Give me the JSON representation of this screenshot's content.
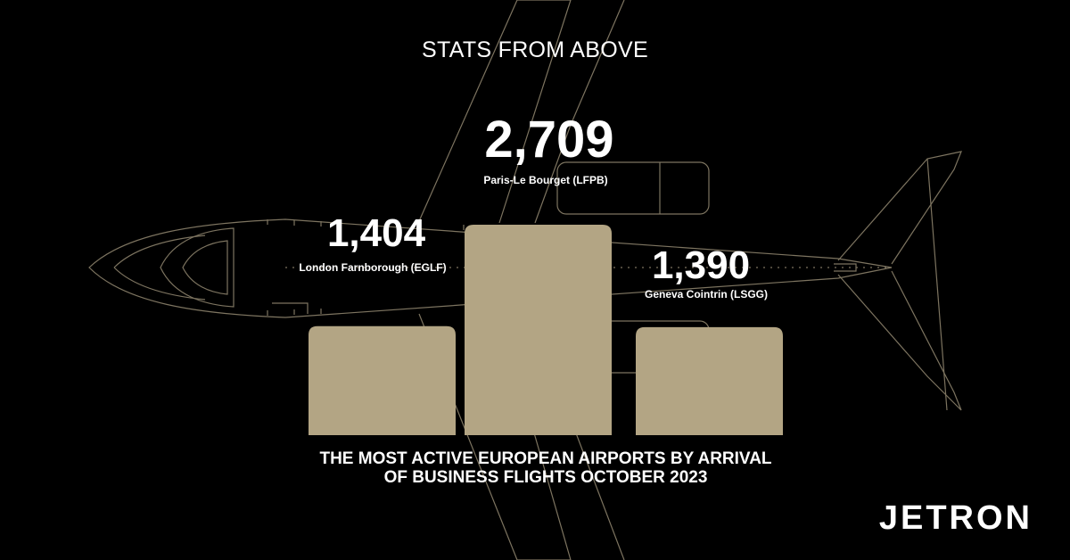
{
  "heading": "STATS FROM ABOVE",
  "caption": "THE MOST ACTIVE EUROPEAN AIRPORTS BY ARRIVAL OF BUSINESS FLIGHTS OCTOBER 2023",
  "brand": "JETRON",
  "colors": {
    "background": "#000000",
    "bar": "#b3a584",
    "plane_outline": "#7d7460",
    "text": "#ffffff"
  },
  "chart_data": {
    "type": "bar",
    "categories": [
      "London Farnborough (EGLF)",
      "Paris-Le Bourget (LFPB)",
      "Geneva Cointrin (LSGG)"
    ],
    "values": [
      1404,
      2709,
      1390
    ],
    "value_labels": [
      "1,404",
      "2,709",
      "1,390"
    ]
  }
}
